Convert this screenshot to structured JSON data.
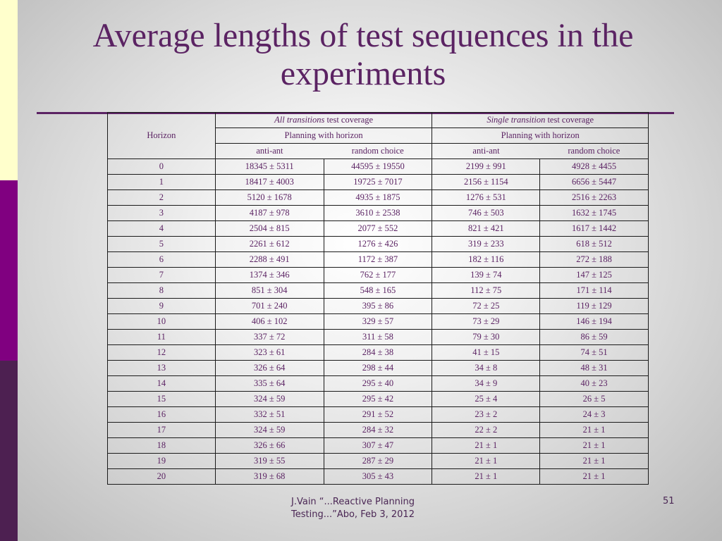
{
  "slide": {
    "title": "Average lengths of test sequences in the experiments",
    "footer": "J.Vain “...Reactive Planning Testing...”Abo, Feb 3, 2012",
    "page_number": "51"
  },
  "table": {
    "horizon_label": "Horizon",
    "group1": {
      "italic": "All transitions",
      "rest": " test coverage"
    },
    "group2": {
      "italic": "Single transition",
      "rest": " test coverage"
    },
    "planning_label_1": "Planning with horizon",
    "planning_label_2": "Planning with horizon",
    "col_labels": [
      "anti-ant",
      "random choice",
      "anti-ant",
      "random choice"
    ],
    "rows": [
      [
        "0",
        "18345 ± 5311",
        "44595 ± 19550",
        "2199 ± 991",
        "4928 ± 4455"
      ],
      [
        "1",
        "18417 ± 4003",
        "19725 ± 7017",
        "2156 ± 1154",
        "6656 ± 5447"
      ],
      [
        "2",
        "5120 ± 1678",
        "4935 ± 1875",
        "1276 ± 531",
        "2516 ± 2263"
      ],
      [
        "3",
        "4187 ± 978",
        "3610 ± 2538",
        "746 ± 503",
        "1632 ± 1745"
      ],
      [
        "4",
        "2504 ± 815",
        "2077 ± 552",
        "821 ± 421",
        "1617 ± 1442"
      ],
      [
        "5",
        "2261 ± 612",
        "1276 ± 426",
        "319 ± 233",
        "618 ± 512"
      ],
      [
        "6",
        "2288 ± 491",
        "1172 ± 387",
        "182 ± 116",
        "272 ± 188"
      ],
      [
        "7",
        "1374 ± 346",
        "762 ± 177",
        "139 ± 74",
        "147 ± 125"
      ],
      [
        "8",
        "851 ± 304",
        "548 ± 165",
        "112 ± 75",
        "171 ± 114"
      ],
      [
        "9",
        "701 ± 240",
        "395 ± 86",
        "72 ± 25",
        "119 ± 129"
      ],
      [
        "10",
        "406 ± 102",
        "329 ± 57",
        "73 ± 29",
        "146 ± 194"
      ],
      [
        "11",
        "337 ± 72",
        "311 ± 58",
        "79 ± 30",
        "86 ± 59"
      ],
      [
        "12",
        "323 ± 61",
        "284 ± 38",
        "41 ± 15",
        "74 ± 51"
      ],
      [
        "13",
        "326 ± 64",
        "298 ± 44",
        "34 ± 8",
        "48 ± 31"
      ],
      [
        "14",
        "335 ± 64",
        "295 ± 40",
        "34 ± 9",
        "40 ± 23"
      ],
      [
        "15",
        "324 ± 59",
        "295 ± 42",
        "25 ± 4",
        "26 ± 5"
      ],
      [
        "16",
        "332 ± 51",
        "291 ± 52",
        "23 ± 2",
        "24 ± 3"
      ],
      [
        "17",
        "324 ± 59",
        "284 ± 32",
        "22 ± 2",
        "21 ± 1"
      ],
      [
        "18",
        "326 ± 66",
        "307 ± 47",
        "21 ± 1",
        "21 ± 1"
      ],
      [
        "19",
        "319 ± 55",
        "287 ± 29",
        "21 ± 1",
        "21 ± 1"
      ],
      [
        "20",
        "319 ± 68",
        "305 ± 43",
        "21 ± 1",
        "21 ± 1"
      ]
    ]
  },
  "colors": {
    "title": "#5b2363",
    "table_text": "#5b2363",
    "strip_yellow": "#ffffcc",
    "strip_purple": "#800080",
    "strip_dark": "#4d2051"
  }
}
